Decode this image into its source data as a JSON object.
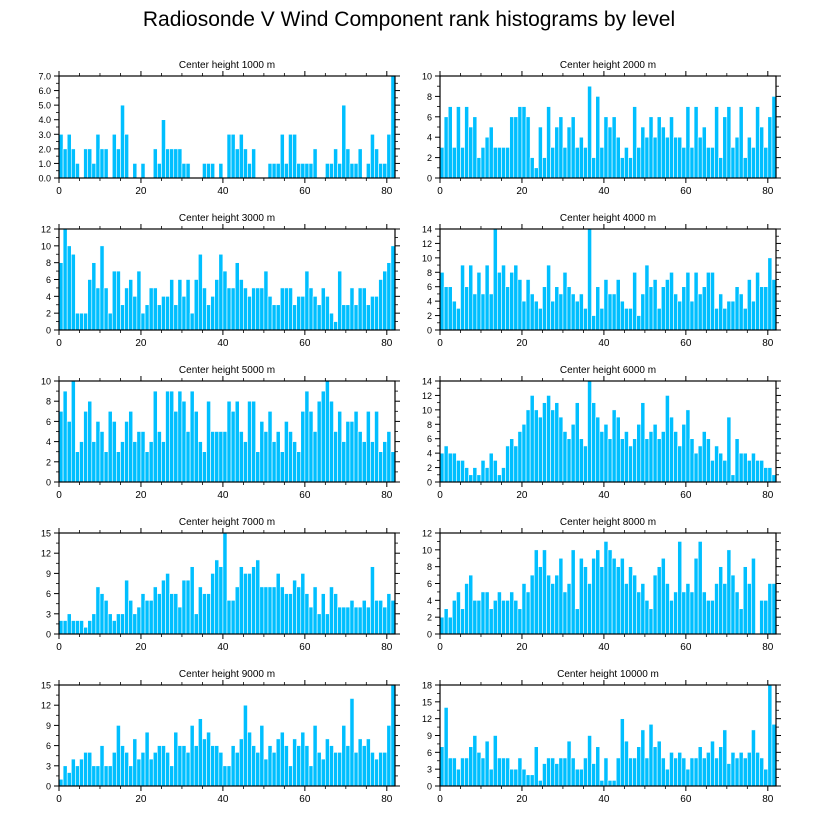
{
  "title": "Radiosonde V Wind Component rank histograms by level",
  "colors": {
    "bar": "#00BFFF",
    "bar_edge": "#ffffff",
    "axis": "#000000",
    "background": "#ffffff"
  },
  "chart_data": [
    {
      "type": "bar",
      "title": "Center height 1000 m",
      "xlabel": "",
      "ylabel": "",
      "xlim": [
        0,
        82
      ],
      "ylim": [
        0,
        7
      ],
      "xticks": [
        0,
        20,
        40,
        60,
        80
      ],
      "yticks": [
        0,
        1,
        2,
        3,
        4,
        5,
        6,
        7
      ],
      "ytick_labels": [
        "0.0",
        "1.0",
        "2.0",
        "3.0",
        "4.0",
        "5.0",
        "6.0",
        "7.0"
      ],
      "values": [
        3,
        2,
        3,
        2,
        1,
        0,
        2,
        2,
        1,
        3,
        2,
        2,
        0,
        3,
        2,
        5,
        3,
        0,
        1,
        0,
        1,
        0,
        0,
        2,
        1,
        4,
        2,
        2,
        2,
        2,
        1,
        1,
        0,
        0,
        0,
        1,
        1,
        1,
        0,
        1,
        0,
        3,
        3,
        2,
        3,
        2,
        1,
        2,
        0,
        0,
        0,
        1,
        1,
        1,
        3,
        1,
        3,
        3,
        1,
        1,
        1,
        1,
        2,
        0,
        0,
        1,
        1,
        2,
        1,
        5,
        2,
        1,
        1,
        2,
        0,
        1,
        3,
        2,
        1,
        1,
        3,
        7
      ]
    },
    {
      "type": "bar",
      "title": "Center height 2000 m",
      "xlabel": "",
      "ylabel": "",
      "xlim": [
        0,
        82
      ],
      "ylim": [
        0,
        10
      ],
      "xticks": [
        0,
        20,
        40,
        60,
        80
      ],
      "yticks": [
        0,
        2,
        4,
        6,
        8,
        10
      ],
      "ytick_labels": [
        "0",
        "2",
        "4",
        "6",
        "8",
        "10"
      ],
      "values": [
        3,
        6,
        7,
        3,
        7,
        3,
        7,
        5,
        6,
        2,
        3,
        4,
        5,
        3,
        3,
        3,
        3,
        6,
        6,
        7,
        7,
        6,
        2,
        1,
        5,
        2,
        7,
        3,
        5,
        6,
        3,
        5,
        6,
        3,
        4,
        3,
        9,
        2,
        8,
        3,
        6,
        5,
        6,
        4,
        2,
        3,
        2,
        7,
        3,
        5,
        4,
        6,
        4,
        6,
        5,
        4,
        6,
        4,
        4,
        3,
        7,
        3,
        7,
        4,
        5,
        3,
        3,
        7,
        2,
        6,
        7,
        3,
        4,
        7,
        2,
        4,
        3,
        7,
        5,
        3,
        6,
        8
      ]
    },
    {
      "type": "bar",
      "title": "Center height 3000 m",
      "xlabel": "",
      "ylabel": "",
      "xlim": [
        0,
        82
      ],
      "ylim": [
        0,
        12
      ],
      "xticks": [
        0,
        20,
        40,
        60,
        80
      ],
      "yticks": [
        0,
        2,
        4,
        6,
        8,
        10,
        12
      ],
      "ytick_labels": [
        "0",
        "2",
        "4",
        "6",
        "8",
        "10",
        "12"
      ],
      "values": [
        8,
        12,
        10,
        9,
        2,
        2,
        2,
        6,
        8,
        5,
        10,
        5,
        2,
        7,
        7,
        3,
        5,
        6,
        4,
        7,
        2,
        3,
        5,
        5,
        3,
        4,
        4,
        6,
        3,
        6,
        4,
        6,
        2,
        6,
        9,
        5,
        3,
        4,
        6,
        9,
        7,
        5,
        5,
        8,
        6,
        5,
        4,
        5,
        5,
        5,
        7,
        4,
        3,
        3,
        5,
        5,
        5,
        3,
        4,
        4,
        7,
        5,
        4,
        3,
        5,
        4,
        2,
        1,
        7,
        3,
        3,
        5,
        3,
        5,
        5,
        3,
        4,
        4,
        6,
        7,
        8,
        10
      ]
    },
    {
      "type": "bar",
      "title": "Center height 4000 m",
      "xlabel": "",
      "ylabel": "",
      "xlim": [
        0,
        82
      ],
      "ylim": [
        0,
        14
      ],
      "xticks": [
        0,
        20,
        40,
        60,
        80
      ],
      "yticks": [
        0,
        2,
        4,
        6,
        8,
        10,
        12,
        14
      ],
      "ytick_labels": [
        "0",
        "2",
        "4",
        "6",
        "8",
        "10",
        "12",
        "14"
      ],
      "values": [
        8,
        6,
        6,
        4,
        3,
        9,
        6,
        9,
        5,
        8,
        5,
        9,
        5,
        14,
        8,
        9,
        6,
        8,
        9,
        7,
        4,
        7,
        5,
        4,
        3,
        6,
        9,
        4,
        6,
        5,
        8,
        6,
        5,
        4,
        5,
        3,
        14,
        2,
        6,
        3,
        7,
        5,
        5,
        7,
        4,
        3,
        3,
        8,
        2,
        5,
        9,
        6,
        7,
        3,
        6,
        7,
        8,
        5,
        4,
        6,
        8,
        4,
        8,
        5,
        6,
        8,
        8,
        3,
        5,
        3,
        4,
        4,
        6,
        5,
        3,
        7,
        4,
        8,
        6,
        6,
        10,
        7
      ]
    },
    {
      "type": "bar",
      "title": "Center height 5000 m",
      "xlabel": "",
      "ylabel": "",
      "xlim": [
        0,
        82
      ],
      "ylim": [
        0,
        10
      ],
      "xticks": [
        0,
        20,
        40,
        60,
        80
      ],
      "yticks": [
        0,
        2,
        4,
        6,
        8,
        10
      ],
      "ytick_labels": [
        "0",
        "2",
        "4",
        "6",
        "8",
        "10"
      ],
      "values": [
        7,
        9,
        6,
        10,
        3,
        4,
        7,
        8,
        4,
        6,
        5,
        3,
        7,
        6,
        3,
        4,
        6,
        7,
        4,
        5,
        5,
        3,
        4,
        9,
        5,
        4,
        9,
        9,
        7,
        9,
        8,
        5,
        9,
        7,
        4,
        3,
        8,
        5,
        5,
        5,
        5,
        8,
        7,
        8,
        5,
        4,
        8,
        8,
        3,
        6,
        5,
        7,
        4,
        5,
        3,
        6,
        5,
        4,
        3,
        7,
        9,
        7,
        5,
        8,
        9,
        10,
        8,
        5,
        7,
        4,
        6,
        6,
        7,
        5,
        4,
        7,
        4,
        7,
        3,
        4,
        5,
        3
      ]
    },
    {
      "type": "bar",
      "title": "Center height 6000 m",
      "xlabel": "",
      "ylabel": "",
      "xlim": [
        0,
        82
      ],
      "ylim": [
        0,
        14
      ],
      "xticks": [
        0,
        20,
        40,
        60,
        80
      ],
      "yticks": [
        0,
        2,
        4,
        6,
        8,
        10,
        12,
        14
      ],
      "ytick_labels": [
        "0",
        "2",
        "4",
        "6",
        "8",
        "10",
        "12",
        "14"
      ],
      "values": [
        4,
        5,
        4,
        4,
        3,
        3,
        2,
        1,
        2,
        1,
        3,
        2,
        4,
        3,
        1,
        2,
        5,
        6,
        5,
        7,
        8,
        10,
        12,
        10,
        9,
        11,
        12,
        10,
        11,
        9,
        7,
        6,
        8,
        11,
        6,
        5,
        14,
        11,
        9,
        7,
        8,
        6,
        10,
        9,
        6,
        7,
        5,
        6,
        8,
        11,
        6,
        7,
        8,
        6,
        7,
        12,
        9,
        7,
        5,
        8,
        10,
        6,
        4,
        5,
        7,
        6,
        3,
        5,
        4,
        3,
        9,
        1,
        6,
        4,
        4,
        3,
        4,
        3,
        3,
        2,
        2,
        1
      ]
    },
    {
      "type": "bar",
      "title": "Center height 7000 m",
      "xlabel": "",
      "ylabel": "",
      "xlim": [
        0,
        82
      ],
      "ylim": [
        0,
        15
      ],
      "xticks": [
        0,
        20,
        40,
        60,
        80
      ],
      "yticks": [
        0,
        3,
        6,
        9,
        12,
        15
      ],
      "ytick_labels": [
        "0",
        "3",
        "6",
        "9",
        "12",
        "15"
      ],
      "values": [
        2,
        2,
        3,
        2,
        2,
        2,
        1,
        2,
        3,
        7,
        6,
        5,
        3,
        2,
        3,
        3,
        8,
        5,
        3,
        4,
        6,
        5,
        5,
        7,
        6,
        8,
        9,
        6,
        6,
        4,
        8,
        8,
        10,
        3,
        7,
        6,
        6,
        9,
        11,
        10,
        15,
        5,
        5,
        7,
        10,
        9,
        9,
        10,
        11,
        7,
        7,
        7,
        7,
        9,
        7,
        6,
        6,
        8,
        7,
        9,
        6,
        4,
        7,
        3,
        6,
        3,
        7,
        6,
        4,
        4,
        4,
        5,
        4,
        4,
        5,
        4,
        10,
        5,
        5,
        4,
        6,
        5
      ]
    },
    {
      "type": "bar",
      "title": "Center height 8000 m",
      "xlabel": "",
      "ylabel": "",
      "xlim": [
        0,
        82
      ],
      "ylim": [
        0,
        12
      ],
      "xticks": [
        0,
        20,
        40,
        60,
        80
      ],
      "yticks": [
        0,
        2,
        4,
        6,
        8,
        10,
        12
      ],
      "ytick_labels": [
        "0",
        "2",
        "4",
        "6",
        "8",
        "10",
        "12"
      ],
      "values": [
        2,
        3,
        2,
        4,
        5,
        3,
        6,
        7,
        4,
        4,
        5,
        5,
        3,
        4,
        5,
        4,
        4,
        5,
        4,
        3,
        6,
        5,
        7,
        10,
        8,
        10,
        7,
        6,
        7,
        9,
        5,
        6,
        10,
        3,
        9,
        8,
        6,
        9,
        10,
        8,
        11,
        10,
        9,
        8,
        9,
        6,
        8,
        7,
        5,
        6,
        4,
        3,
        7,
        8,
        9,
        6,
        4,
        5,
        11,
        5,
        6,
        5,
        9,
        11,
        5,
        4,
        4,
        6,
        8,
        6,
        10,
        7,
        5,
        3,
        8,
        6,
        9,
        0,
        4,
        4,
        6,
        6
      ]
    },
    {
      "type": "bar",
      "title": "Center height 9000 m",
      "xlabel": "",
      "ylabel": "",
      "xlim": [
        0,
        82
      ],
      "ylim": [
        0,
        15
      ],
      "xticks": [
        0,
        20,
        40,
        60,
        80
      ],
      "yticks": [
        0,
        3,
        6,
        9,
        12,
        15
      ],
      "ytick_labels": [
        "0",
        "3",
        "6",
        "9",
        "12",
        "15"
      ],
      "values": [
        1,
        3,
        2,
        4,
        3,
        4,
        5,
        5,
        3,
        3,
        6,
        3,
        3,
        5,
        9,
        6,
        5,
        3,
        7,
        4,
        5,
        8,
        4,
        5,
        6,
        6,
        5,
        3,
        8,
        6,
        6,
        5,
        9,
        6,
        10,
        7,
        8,
        6,
        6,
        5,
        3,
        3,
        6,
        5,
        7,
        12,
        8,
        6,
        5,
        9,
        4,
        6,
        5,
        7,
        8,
        6,
        3,
        7,
        6,
        8,
        6,
        3,
        9,
        5,
        4,
        7,
        6,
        5,
        5,
        9,
        6,
        13,
        5,
        7,
        6,
        7,
        5,
        4,
        5,
        5,
        9,
        15
      ]
    },
    {
      "type": "bar",
      "title": "Center height 10000 m",
      "xlabel": "",
      "ylabel": "",
      "xlim": [
        0,
        82
      ],
      "ylim": [
        0,
        18
      ],
      "xticks": [
        0,
        20,
        40,
        60,
        80
      ],
      "yticks": [
        0,
        3,
        6,
        9,
        12,
        15,
        18
      ],
      "ytick_labels": [
        "0",
        "3",
        "6",
        "9",
        "12",
        "15",
        "18"
      ],
      "values": [
        7,
        14,
        5,
        5,
        3,
        5,
        5,
        7,
        9,
        6,
        5,
        8,
        3,
        9,
        5,
        5,
        5,
        3,
        3,
        5,
        3,
        2,
        2,
        7,
        1,
        4,
        5,
        5,
        4,
        5,
        5,
        8,
        5,
        3,
        3,
        5,
        9,
        4,
        7,
        1,
        5,
        1,
        1,
        5,
        12,
        8,
        5,
        5,
        7,
        10,
        5,
        11,
        7,
        8,
        5,
        3,
        6,
        5,
        6,
        5,
        3,
        5,
        5,
        7,
        5,
        6,
        8,
        5,
        7,
        10,
        4,
        6,
        5,
        6,
        5,
        6,
        10,
        6,
        5,
        3,
        18,
        11
      ]
    }
  ]
}
